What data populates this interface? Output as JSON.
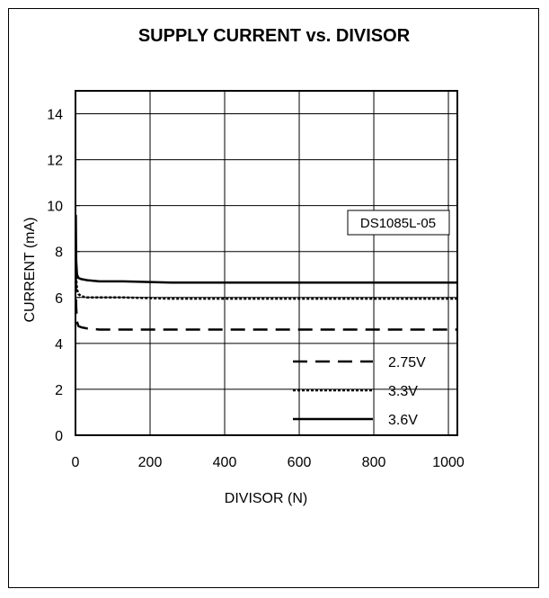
{
  "chart_data": {
    "type": "line",
    "title": "SUPPLY CURRENT vs. DIVISOR",
    "xlabel": "DIVISOR (N)",
    "ylabel": "CURRENT (mA)",
    "xlim": [
      0,
      1024
    ],
    "ylim": [
      0,
      15
    ],
    "xticks": [
      0,
      200,
      400,
      600,
      800,
      1000
    ],
    "yticks": [
      0,
      2,
      4,
      6,
      8,
      10,
      12,
      14
    ],
    "grid": true,
    "legend_position": "bottom-right",
    "annotation": "DS1085L-05",
    "series": [
      {
        "name": "2.75V",
        "style": "dashed",
        "x": [
          1,
          2,
          4,
          8,
          16,
          32,
          64,
          128,
          256,
          512,
          1024
        ],
        "y": [
          6.9,
          5.6,
          4.95,
          4.75,
          4.7,
          4.65,
          4.6,
          4.6,
          4.6,
          4.6,
          4.6
        ]
      },
      {
        "name": "3.3V",
        "style": "dotted",
        "x": [
          1,
          2,
          4,
          8,
          16,
          32,
          64,
          128,
          256,
          512,
          1024
        ],
        "y": [
          8.1,
          6.8,
          6.35,
          6.15,
          6.05,
          6.0,
          6.0,
          6.0,
          5.95,
          5.95,
          5.95
        ]
      },
      {
        "name": "3.6V",
        "style": "solid",
        "x": [
          1,
          2,
          4,
          8,
          16,
          32,
          64,
          128,
          256,
          512,
          1024
        ],
        "y": [
          9.6,
          7.6,
          7.0,
          6.85,
          6.8,
          6.75,
          6.7,
          6.7,
          6.65,
          6.65,
          6.65
        ]
      }
    ]
  }
}
